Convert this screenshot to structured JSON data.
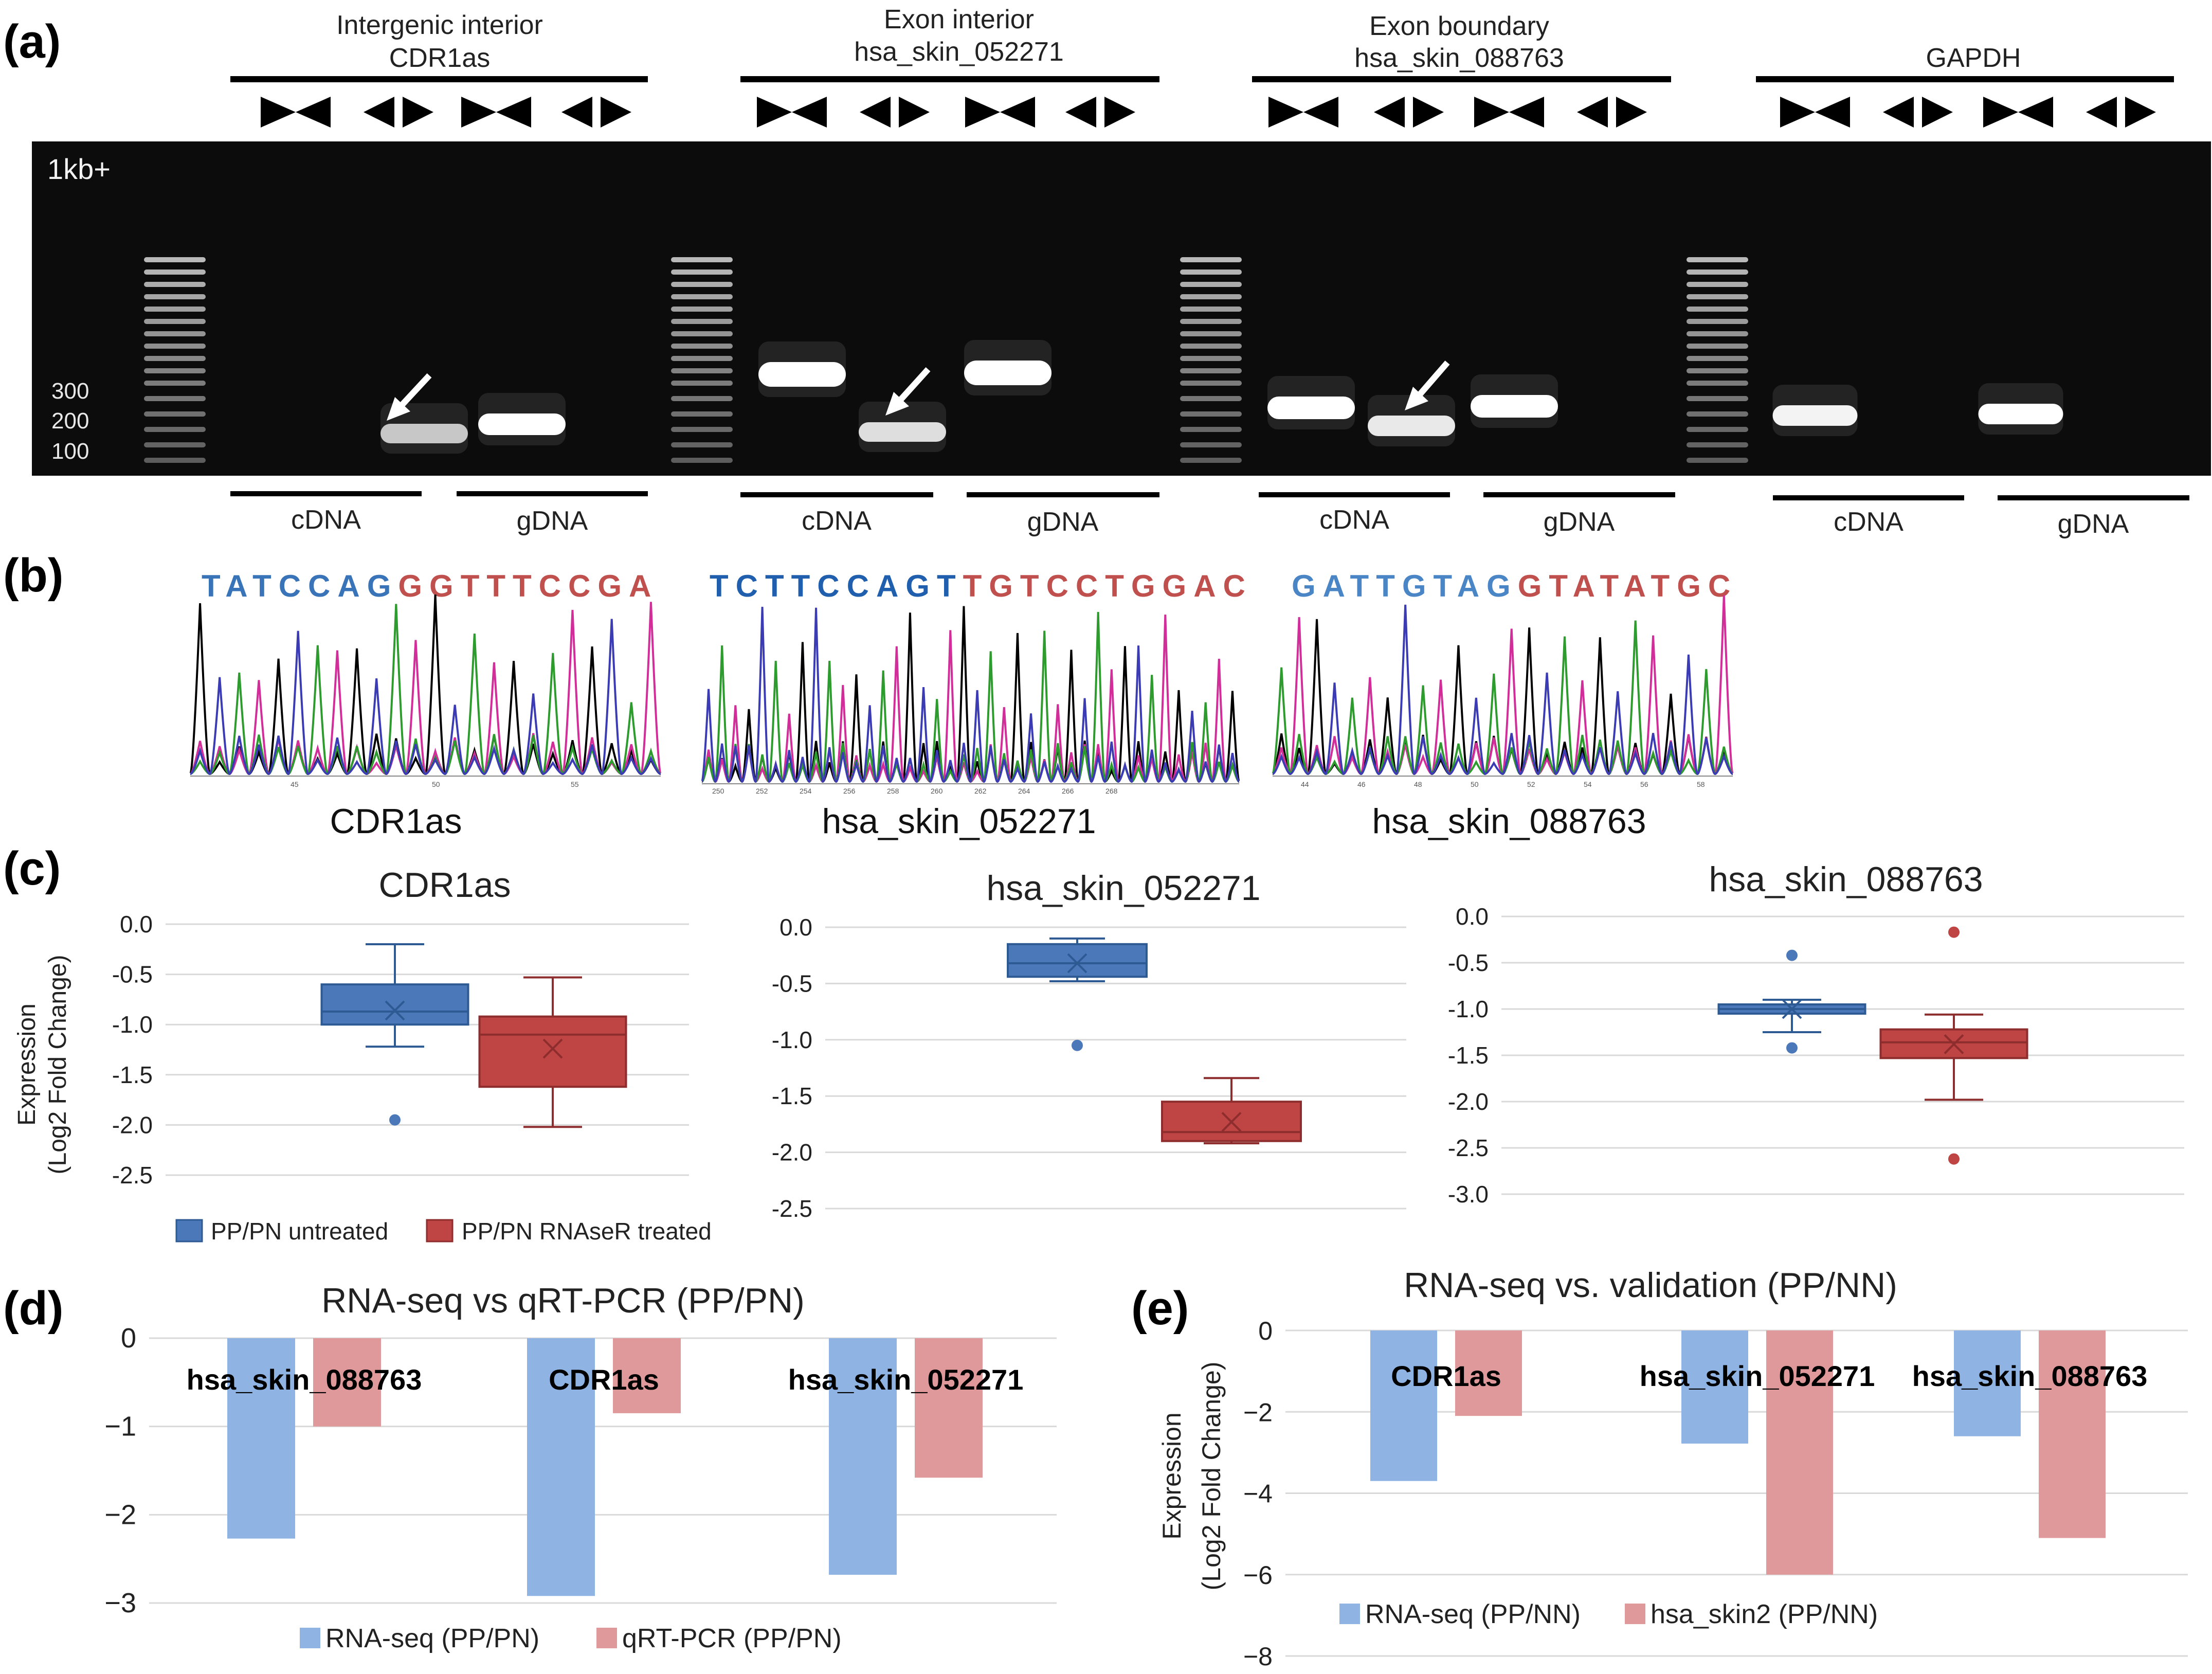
{
  "panels": {
    "a": "(a)",
    "b": "(b)",
    "c": "(c)",
    "d": "(d)",
    "e": "(e)"
  },
  "gel": {
    "ladder_label": "1kb+",
    "size_markers": [
      "300",
      "200",
      "100"
    ],
    "groups": [
      {
        "title_line1": "Intergenic interior",
        "title_line2": "CDR1as",
        "cdna": "cDNA",
        "gdna": "gDNA"
      },
      {
        "title_line1": "Exon interior",
        "title_line2": "hsa_skin_052271",
        "cdna": "cDNA",
        "gdna": "gDNA"
      },
      {
        "title_line1": "Exon boundary",
        "title_line2": "hsa_skin_088763",
        "cdna": "cDNA",
        "gdna": "gDNA"
      },
      {
        "title_line1": "",
        "title_line2": "GAPDH",
        "cdna": "cDNA",
        "gdna": "gDNA"
      }
    ]
  },
  "sanger": [
    {
      "seq_blue": "TATCCAG",
      "seq_red": "GGTTTCCGA",
      "name": "CDR1as",
      "axis_ticks": [
        "45",
        "50",
        "55"
      ]
    },
    {
      "seq_blue": "TCTTCCAGT",
      "seq_red": "TGTCCTGGAC",
      "name": "hsa_skin_052271",
      "axis_ticks": [
        "250",
        "252",
        "254",
        "256",
        "258",
        "260",
        "262",
        "264",
        "266",
        "268"
      ]
    },
    {
      "seq_blue": "GATTGTAG",
      "seq_red": "GTATATGC",
      "name": "hsa_skin_088763",
      "axis_ticks": [
        "44",
        "46",
        "48",
        "50",
        "52",
        "54",
        "56",
        "58"
      ]
    }
  ],
  "colors": {
    "blue": "#4a78b9",
    "red": "#bf4444",
    "lightblue": "#8fb4e3",
    "lightred": "#e0999a",
    "seq_blue": "#3a74b8",
    "seq_red": "#c0504d"
  },
  "chart_data": [
    {
      "type": "box",
      "title": "CDR1as",
      "ylabel_line1": "Expression",
      "ylabel_line2": "(Log2 Fold Change)",
      "ylim": [
        -2.5,
        0.0
      ],
      "yticks": [
        "0.0",
        "-0.5",
        "-1.0",
        "-1.5",
        "-2.0",
        "-2.5"
      ],
      "series": [
        {
          "name": "PP/PN untreated",
          "min": -1.22,
          "q1": -1.0,
          "median": -0.87,
          "q3": -0.6,
          "max": -0.2,
          "mean": -0.86,
          "outliers": [
            -1.95
          ]
        },
        {
          "name": "PP/PN RNAseR treated",
          "min": -2.02,
          "q1": -1.62,
          "median": -1.1,
          "q3": -0.92,
          "max": -0.53,
          "mean": -1.24,
          "outliers": []
        }
      ],
      "legend": [
        "PP/PN untreated",
        "PP/PN RNAseR treated"
      ]
    },
    {
      "type": "box",
      "title": "hsa_skin_052271",
      "ylim": [
        -2.5,
        0.0
      ],
      "yticks": [
        "0.0",
        "-0.5",
        "-1.0",
        "-1.5",
        "-2.0",
        "-2.5"
      ],
      "series": [
        {
          "name": "PP/PN untreated",
          "min": -0.48,
          "q1": -0.44,
          "median": -0.32,
          "q3": -0.15,
          "max": -0.1,
          "mean": -0.32,
          "outliers": [
            -1.05
          ]
        },
        {
          "name": "PP/PN RNAseR treated",
          "min": -1.92,
          "q1": -1.9,
          "median": -1.82,
          "q3": -1.55,
          "max": -1.34,
          "mean": -1.73,
          "outliers": []
        }
      ]
    },
    {
      "type": "box",
      "title": "hsa_skin_088763",
      "ylim": [
        -3.0,
        0.0
      ],
      "yticks": [
        "0.0",
        "-0.5",
        "-1.0",
        "-1.5",
        "-2.0",
        "-2.5",
        "-3.0"
      ],
      "series": [
        {
          "name": "PP/PN untreated",
          "min": -1.25,
          "q1": -1.05,
          "median": -1.0,
          "q3": -0.95,
          "max": -0.9,
          "mean": -1.0,
          "outliers": [
            -0.42,
            -1.42
          ]
        },
        {
          "name": "PP/PN RNAseR treated",
          "min": -1.98,
          "q1": -1.53,
          "median": -1.36,
          "q3": -1.22,
          "max": -1.06,
          "mean": -1.38,
          "outliers": [
            -0.17,
            -2.62
          ]
        }
      ]
    },
    {
      "type": "bar",
      "title": "RNA-seq vs qRT-PCR (PP/PN)",
      "categories": [
        "hsa_skin_088763",
        "CDR1as",
        "hsa_skin_052271"
      ],
      "ylim": [
        -3,
        0
      ],
      "yticks": [
        "0",
        "−1",
        "−2",
        "−3"
      ],
      "series": [
        {
          "name": "RNA-seq (PP/PN)",
          "values": [
            -2.27,
            -2.92,
            -2.68
          ]
        },
        {
          "name": "qRT-PCR (PP/PN)",
          "values": [
            -1.0,
            -0.85,
            -1.58
          ]
        }
      ]
    },
    {
      "type": "bar",
      "title": "RNA-seq vs. validation (PP/NN)",
      "ylabel_line1": "Expression",
      "ylabel_line2": "(Log2 Fold Change)",
      "categories": [
        "CDR1as",
        "hsa_skin_052271",
        "hsa_skin_088763"
      ],
      "ylim": [
        -8,
        0
      ],
      "yticks": [
        "0",
        "−2",
        "−4",
        "−6",
        "−8"
      ],
      "series": [
        {
          "name": "RNA-seq (PP/NN)",
          "values": [
            -3.7,
            -2.78,
            -2.6
          ]
        },
        {
          "name": "hsa_skin2 (PP/NN)",
          "values": [
            -2.1,
            -6.0,
            -5.1
          ]
        }
      ]
    }
  ]
}
